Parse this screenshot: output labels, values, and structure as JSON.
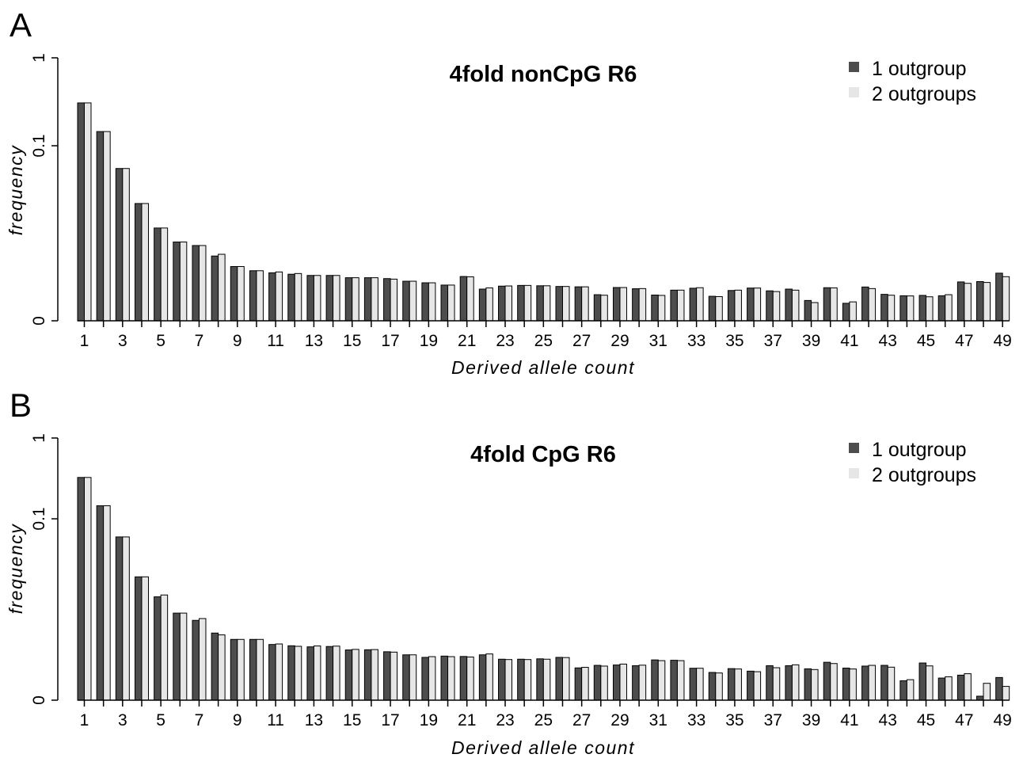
{
  "colors": {
    "outgroup1": "#4d4d4d",
    "outgroup2": "#e6e6e6",
    "bar_stroke": "#000000"
  },
  "chart_data": [
    {
      "type": "bar",
      "panel": "A",
      "title": "4fold nonCpG R6",
      "xlabel": "Derived allele count",
      "ylabel": "frequency",
      "y_scale": "broken: linear 0 to 0.1 below, log 0.1 to 1 above",
      "y_ticks": [
        "0",
        "0.1",
        "1"
      ],
      "x_tick_labels": [
        "1",
        "3",
        "5",
        "7",
        "9",
        "11",
        "13",
        "15",
        "17",
        "19",
        "21",
        "23",
        "25",
        "27",
        "29",
        "31",
        "33",
        "35",
        "37",
        "39",
        "41",
        "43",
        "45",
        "47",
        "49"
      ],
      "legend": {
        "position": "top-right",
        "entries": [
          "1 outgroup",
          "2 outgroups"
        ]
      },
      "categories": [
        1,
        2,
        3,
        4,
        5,
        6,
        7,
        8,
        9,
        10,
        11,
        12,
        13,
        14,
        15,
        16,
        17,
        18,
        19,
        20,
        21,
        22,
        23,
        24,
        25,
        26,
        27,
        28,
        29,
        30,
        31,
        32,
        33,
        34,
        35,
        36,
        37,
        38,
        39,
        40,
        41,
        42,
        43,
        44,
        45,
        46,
        47,
        48,
        49
      ],
      "series": [
        {
          "name": "1 outgroup",
          "values": [
            0.307,
            0.145,
            0.087,
            0.067,
            0.053,
            0.045,
            0.043,
            0.037,
            0.031,
            0.0286,
            0.0274,
            0.0266,
            0.0259,
            0.0259,
            0.0246,
            0.0246,
            0.0241,
            0.0226,
            0.0217,
            0.0204,
            0.0253,
            0.0181,
            0.0198,
            0.0202,
            0.02,
            0.0196,
            0.0194,
            0.0149,
            0.019,
            0.0183,
            0.0147,
            0.0175,
            0.0186,
            0.014,
            0.0173,
            0.0187,
            0.0171,
            0.0181,
            0.0116,
            0.0189,
            0.01,
            0.0193,
            0.0151,
            0.0143,
            0.0145,
            0.0143,
            0.0222,
            0.0224,
            0.0272
          ]
        },
        {
          "name": "2 outgroups",
          "values": [
            0.307,
            0.145,
            0.087,
            0.067,
            0.053,
            0.045,
            0.043,
            0.038,
            0.031,
            0.0286,
            0.0279,
            0.027,
            0.0259,
            0.0259,
            0.0246,
            0.0246,
            0.0238,
            0.0226,
            0.0217,
            0.0204,
            0.0251,
            0.0188,
            0.0199,
            0.0202,
            0.02,
            0.0196,
            0.0194,
            0.0146,
            0.019,
            0.0184,
            0.0145,
            0.0175,
            0.0189,
            0.0138,
            0.0175,
            0.0187,
            0.0167,
            0.0175,
            0.0104,
            0.0188,
            0.0108,
            0.0184,
            0.0146,
            0.0142,
            0.0137,
            0.0149,
            0.0214,
            0.0219,
            0.0252
          ]
        }
      ]
    },
    {
      "type": "bar",
      "panel": "B",
      "title": "4fold CpG R6",
      "xlabel": "Derived allele count",
      "ylabel": "frequency",
      "y_scale": "broken: linear 0 to 0.1 below, log 0.1 to 1 above",
      "y_ticks": [
        "0",
        "0.1",
        "1"
      ],
      "x_tick_labels": [
        "1",
        "3",
        "5",
        "7",
        "9",
        "11",
        "13",
        "15",
        "17",
        "19",
        "21",
        "23",
        "25",
        "27",
        "29",
        "31",
        "33",
        "35",
        "37",
        "39",
        "41",
        "43",
        "45",
        "47",
        "49"
      ],
      "legend": {
        "position": "top-right",
        "entries": [
          "1 outgroup",
          "2 outgroups"
        ]
      },
      "categories": [
        1,
        2,
        3,
        4,
        5,
        6,
        7,
        8,
        9,
        10,
        11,
        12,
        13,
        14,
        15,
        16,
        17,
        18,
        19,
        20,
        21,
        22,
        23,
        24,
        25,
        26,
        27,
        28,
        29,
        30,
        31,
        32,
        33,
        34,
        35,
        36,
        37,
        38,
        39,
        40,
        41,
        42,
        43,
        44,
        45,
        46,
        47,
        48,
        49
      ],
      "series": [
        {
          "name": "1 outgroup",
          "values": [
            0.325,
            0.145,
            0.09,
            0.068,
            0.057,
            0.048,
            0.044,
            0.037,
            0.0335,
            0.0335,
            0.0307,
            0.03,
            0.0294,
            0.0296,
            0.0277,
            0.0278,
            0.0267,
            0.025,
            0.0236,
            0.0243,
            0.0241,
            0.025,
            0.0226,
            0.0226,
            0.0228,
            0.0236,
            0.0178,
            0.0192,
            0.0194,
            0.019,
            0.0222,
            0.022,
            0.0176,
            0.0153,
            0.0174,
            0.016,
            0.019,
            0.019,
            0.0173,
            0.0209,
            0.0177,
            0.0188,
            0.0192,
            0.0107,
            0.0205,
            0.0122,
            0.0138,
            0.0022,
            0.0125
          ]
        },
        {
          "name": "2 outgroups",
          "values": [
            0.325,
            0.145,
            0.09,
            0.068,
            0.058,
            0.048,
            0.045,
            0.036,
            0.0335,
            0.0335,
            0.031,
            0.0297,
            0.0299,
            0.0298,
            0.028,
            0.0279,
            0.0265,
            0.025,
            0.024,
            0.024,
            0.0238,
            0.0255,
            0.0224,
            0.0224,
            0.0226,
            0.0235,
            0.0181,
            0.0188,
            0.0199,
            0.0193,
            0.0218,
            0.0218,
            0.0176,
            0.015,
            0.0172,
            0.0157,
            0.0179,
            0.0195,
            0.0169,
            0.0202,
            0.0172,
            0.0192,
            0.0182,
            0.0113,
            0.0189,
            0.0129,
            0.0146,
            0.0093,
            0.0076
          ]
        }
      ]
    }
  ]
}
